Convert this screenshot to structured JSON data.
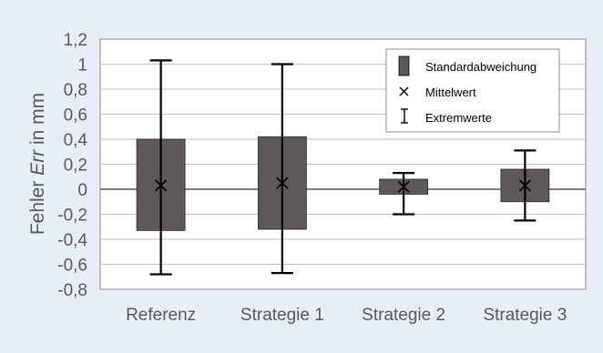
{
  "chart_data": {
    "type": "box",
    "title": "",
    "ylabel_prefix": "Fehler ",
    "ylabel_var": "Err",
    "ylabel_suffix": " in mm",
    "xlabel": "",
    "ylim": [
      -0.8,
      1.2
    ],
    "yticks": [
      -0.8,
      -0.6,
      -0.4,
      -0.2,
      0,
      0.2,
      0.4,
      0.6,
      0.8,
      1,
      1.2
    ],
    "ytick_labels": [
      "-0,8",
      "-0,6",
      "-0,4",
      "-0,2",
      "0",
      "0,2",
      "0,4",
      "0,6",
      "0,8",
      "1",
      "1,2"
    ],
    "grid": true,
    "categories": [
      "Referenz",
      "Strategie 1",
      "Strategie 2",
      "Strategie 3"
    ],
    "series": [
      {
        "category": "Referenz",
        "std_low": -0.33,
        "std_high": 0.4,
        "mean": 0.03,
        "min": -0.68,
        "max": 1.03
      },
      {
        "category": "Strategie 1",
        "std_low": -0.32,
        "std_high": 0.42,
        "mean": 0.05,
        "min": -0.67,
        "max": 1.0
      },
      {
        "category": "Strategie 2",
        "std_low": -0.04,
        "std_high": 0.08,
        "mean": 0.02,
        "min": -0.2,
        "max": 0.13
      },
      {
        "category": "Strategie 3",
        "std_low": -0.1,
        "std_high": 0.16,
        "mean": 0.03,
        "min": -0.25,
        "max": 0.31
      }
    ],
    "legend": {
      "position": "top-right",
      "entries": [
        {
          "label": "Standardabweichung",
          "icon": "filled-box"
        },
        {
          "label": "Mittelwert",
          "icon": "x-mark"
        },
        {
          "label": "Extremwerte",
          "icon": "i-beam"
        }
      ]
    },
    "colors": {
      "box": "#5e5859",
      "background": "#e8eef7",
      "plot_area": "#ffffff",
      "grid": "#bfbfbf",
      "text": "#595959",
      "whisker": "#000000"
    }
  }
}
